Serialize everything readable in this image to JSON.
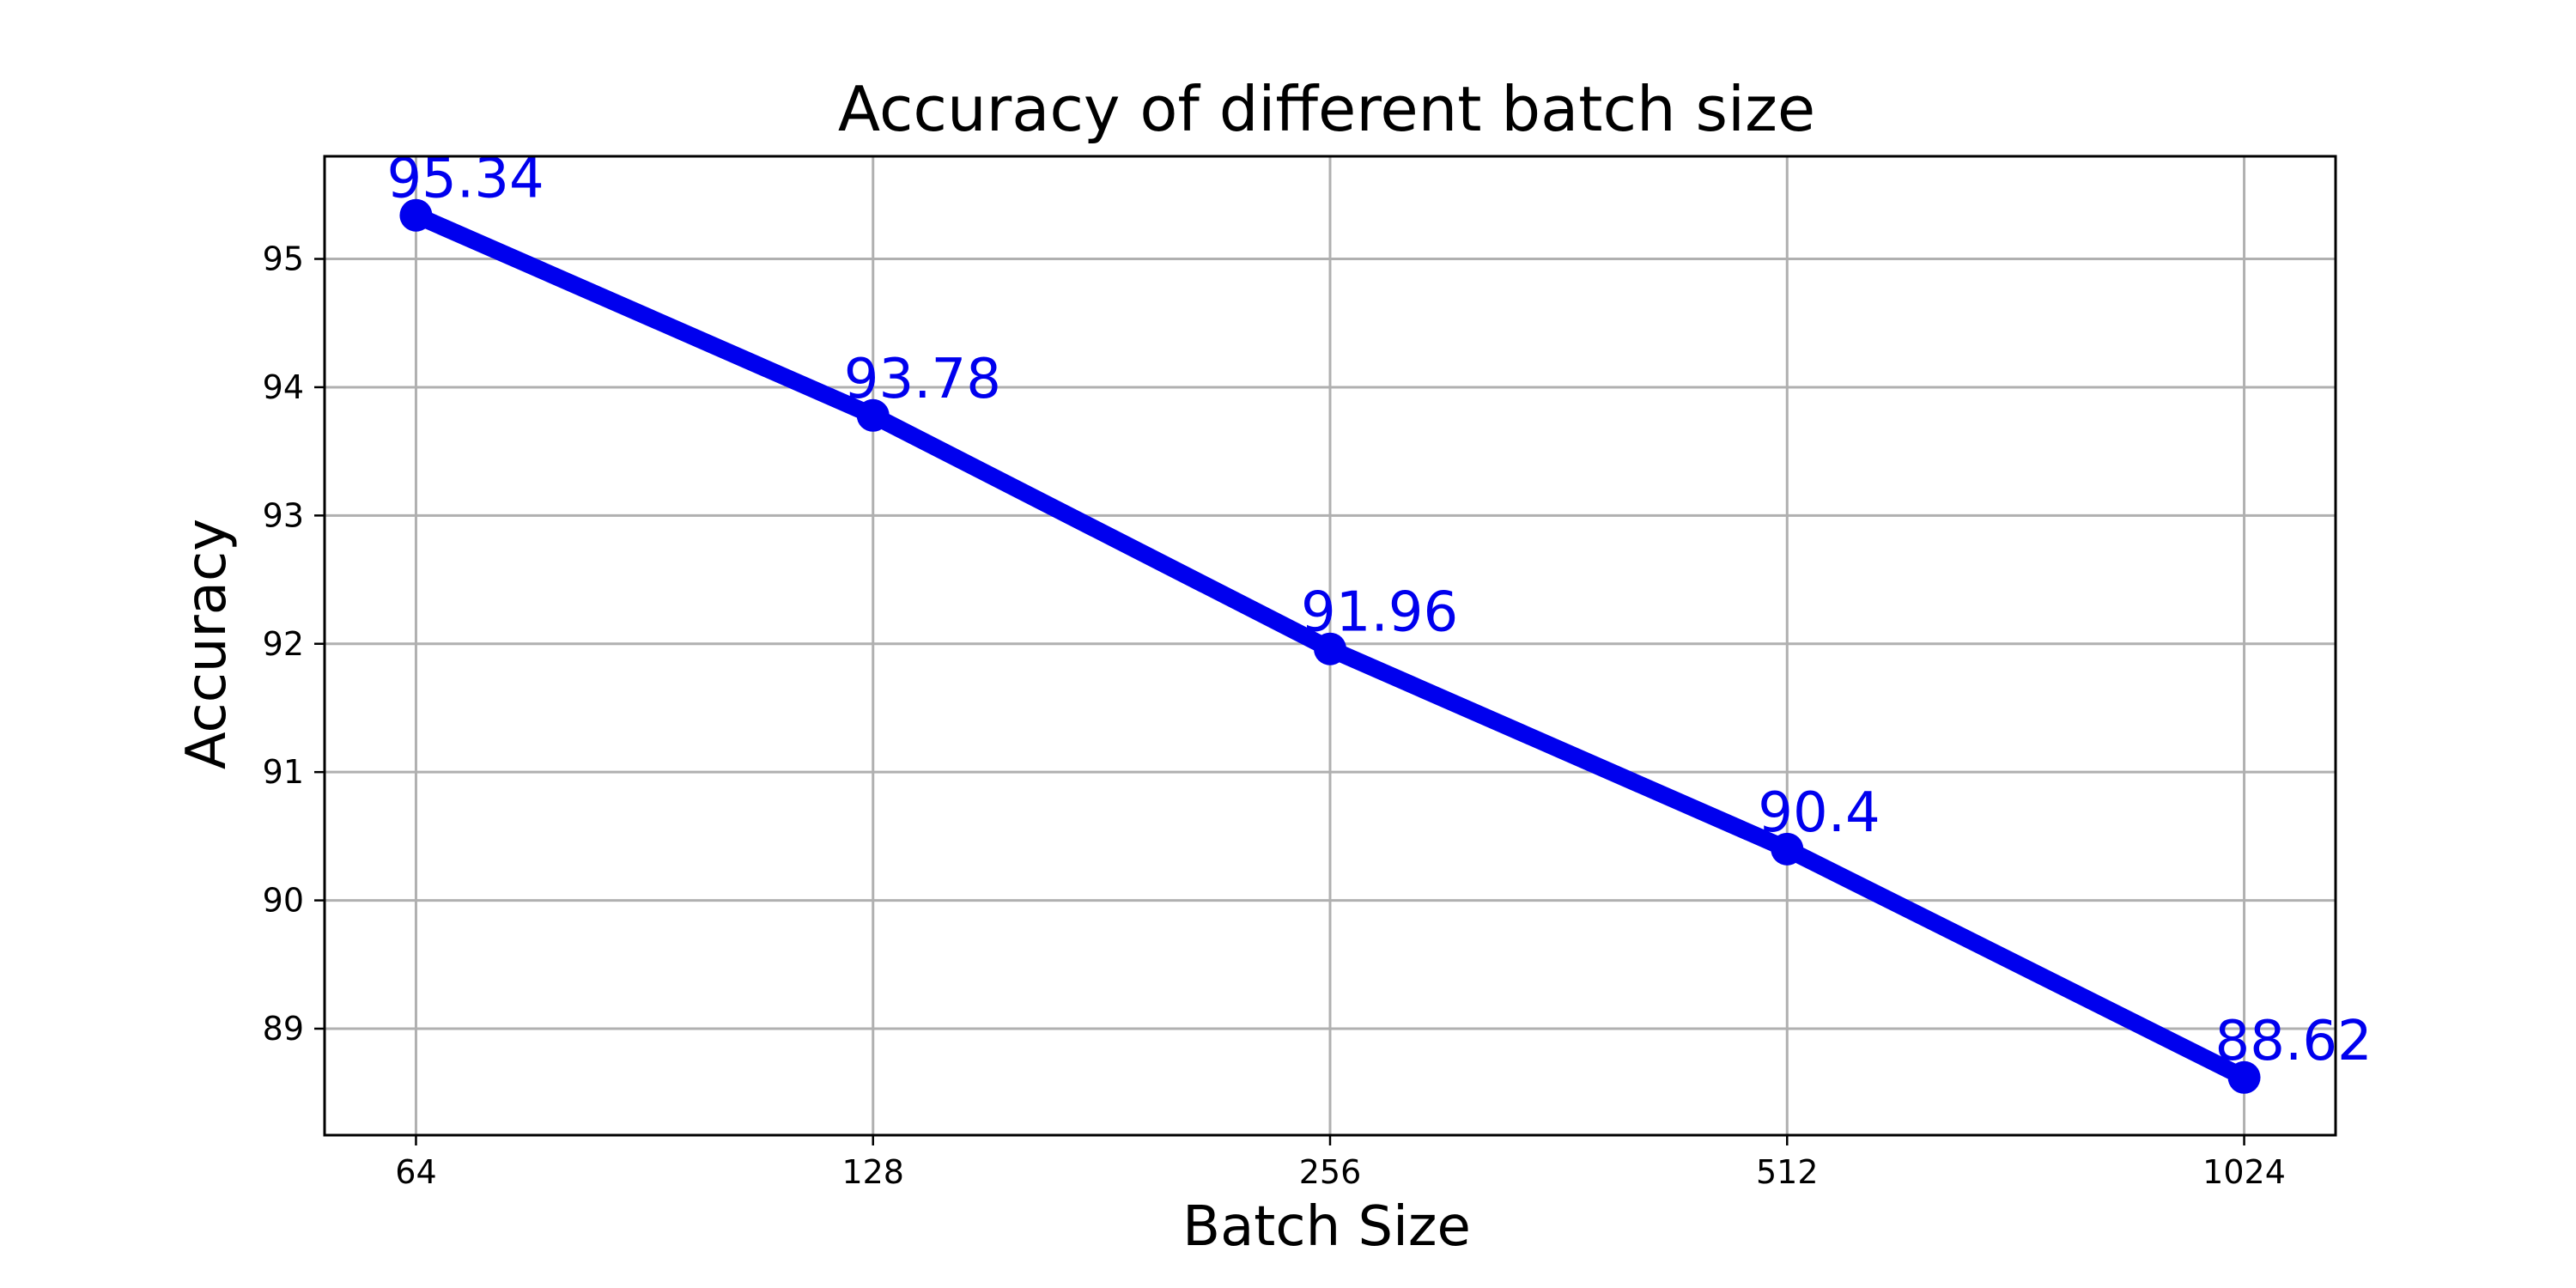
{
  "chart_data": {
    "type": "line",
    "title": "Accuracy of different batch size",
    "xlabel": "Batch Size",
    "ylabel": "Accuracy",
    "categories": [
      "64",
      "128",
      "256",
      "512",
      "1024"
    ],
    "x": [
      64,
      128,
      256,
      512,
      1024
    ],
    "series": [
      {
        "values": [
          95.34,
          93.78,
          91.96,
          90.4,
          88.62
        ],
        "labels": [
          "95.34",
          "93.78",
          "91.96",
          "90.4",
          "88.62"
        ],
        "color": "#0000ee"
      }
    ],
    "yticks": [
      89,
      90,
      91,
      92,
      93,
      94,
      95
    ],
    "ytick_labels": [
      "89",
      "90",
      "91",
      "92",
      "93",
      "94",
      "95"
    ],
    "ylim": [
      88.17,
      95.8
    ],
    "xscale": "log2",
    "grid": true,
    "legend": "none"
  }
}
